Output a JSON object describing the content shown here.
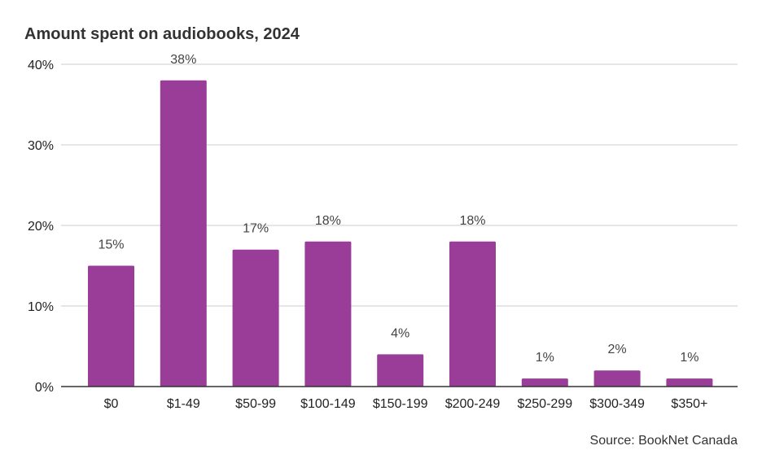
{
  "chart_data": {
    "type": "bar",
    "title": "Amount spent on audiobooks, 2024",
    "categories": [
      "$0",
      "$1-49",
      "$50-99",
      "$100-149",
      "$150-199",
      "$200-249",
      "$250-299",
      "$300-349",
      "$350+"
    ],
    "values": [
      15,
      38,
      17,
      18,
      4,
      18,
      1,
      2,
      1
    ],
    "data_labels": [
      "15%",
      "38%",
      "17%",
      "18%",
      "4%",
      "18%",
      "1%",
      "2%",
      "1%"
    ],
    "xlabel": "",
    "ylabel": "",
    "ylim": [
      0,
      40
    ],
    "y_ticks": [
      0,
      10,
      20,
      30,
      40
    ],
    "y_tick_labels": [
      "0%",
      "10%",
      "20%",
      "30%",
      "40%"
    ],
    "grid": true,
    "bar_color": "#993d99",
    "source": "Source: BookNet Canada"
  }
}
